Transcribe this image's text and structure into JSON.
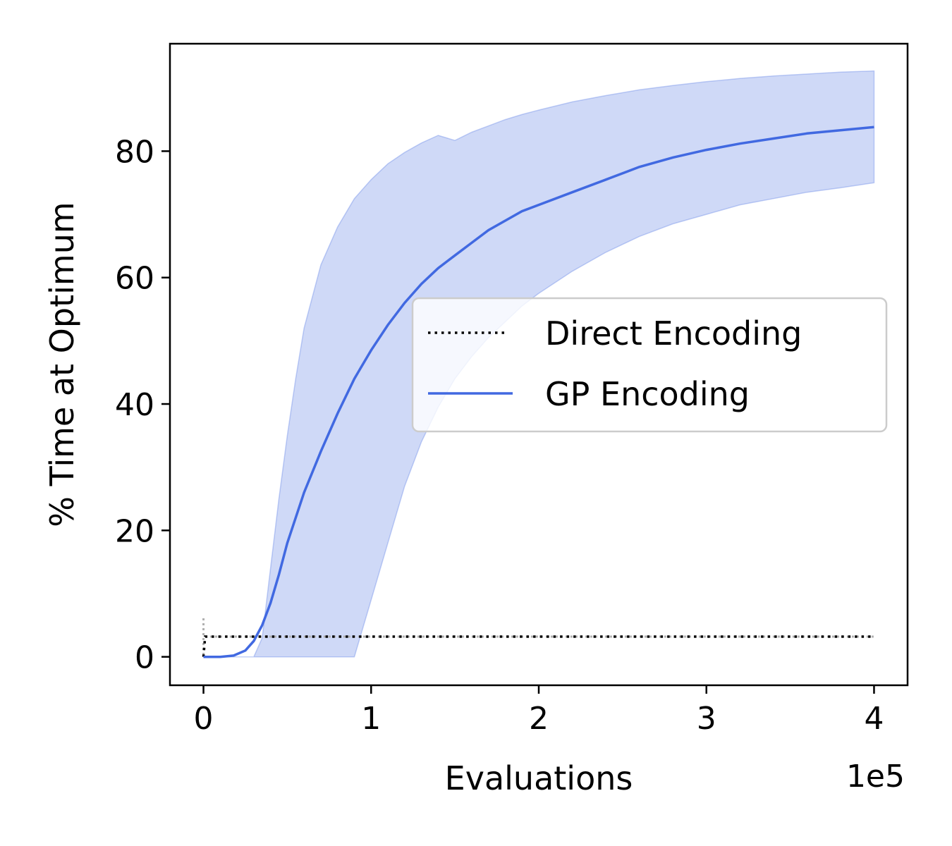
{
  "chart_data": {
    "type": "line",
    "title": "",
    "xlabel": "Evaluations",
    "ylabel": "% Time at Optimum",
    "x_offset_label": "1e5",
    "xlim": [
      -0.2,
      4.2
    ],
    "ylim": [
      -4.5,
      97
    ],
    "x_ticks": [
      0,
      1,
      2,
      3,
      4
    ],
    "x_tick_labels": [
      "0",
      "1",
      "2",
      "3",
      "4"
    ],
    "y_ticks": [
      0,
      20,
      40,
      60,
      80
    ],
    "y_tick_labels": [
      "0",
      "20",
      "40",
      "60",
      "80"
    ],
    "grid": false,
    "legend": {
      "placement": "center-right",
      "entries": [
        {
          "label": "Direct Encoding",
          "style": "dotted",
          "color": "#000000"
        },
        {
          "label": "GP Encoding",
          "style": "solid",
          "color": "#4169e1"
        }
      ]
    },
    "series": [
      {
        "name": "Direct Encoding",
        "color": "#000000",
        "style": "dotted",
        "x": [
          0,
          0.01,
          0.5,
          1,
          2,
          3,
          4
        ],
        "y": [
          0,
          3.2,
          3.2,
          3.2,
          3.2,
          3.2,
          3.2
        ],
        "band_color": "#b0b0b0",
        "band_spike": {
          "x": 0,
          "low": 0.3,
          "high": 6.5
        }
      },
      {
        "name": "GP Encoding",
        "color": "#4169e1",
        "style": "solid",
        "band_color": "#4169e1",
        "x": [
          0,
          0.1,
          0.18,
          0.25,
          0.3,
          0.35,
          0.4,
          0.45,
          0.5,
          0.55,
          0.6,
          0.7,
          0.8,
          0.9,
          1.0,
          1.1,
          1.2,
          1.3,
          1.4,
          1.5,
          1.6,
          1.7,
          1.8,
          1.9,
          2.0,
          2.2,
          2.4,
          2.6,
          2.8,
          3.0,
          3.2,
          3.4,
          3.6,
          3.8,
          4.0
        ],
        "y": [
          0,
          0,
          0.2,
          1,
          2.5,
          5,
          8.5,
          13,
          18,
          22,
          26,
          32.5,
          38.5,
          44,
          48.5,
          52.5,
          56,
          59,
          61.5,
          63.5,
          65.5,
          67.5,
          69,
          70.5,
          71.5,
          73.5,
          75.5,
          77.5,
          79,
          80.2,
          81.2,
          82,
          82.8,
          83.3,
          83.8
        ],
        "lower": [
          0,
          0,
          0,
          0,
          0,
          0,
          0,
          0,
          0,
          0,
          0,
          0,
          0,
          0,
          9,
          18,
          27,
          34,
          39.5,
          44,
          47.5,
          50.5,
          53,
          55.5,
          57.5,
          61,
          64,
          66.5,
          68.5,
          70,
          71.5,
          72.5,
          73.5,
          74.2,
          75
        ],
        "upper": [
          0,
          0,
          0,
          0,
          0,
          3,
          14,
          25,
          35,
          44,
          52,
          62,
          68,
          72.5,
          75.5,
          78,
          79.8,
          81.3,
          82.5,
          81.7,
          83,
          84,
          85,
          85.8,
          86.5,
          87.8,
          88.8,
          89.7,
          90.4,
          91,
          91.5,
          91.9,
          92.2,
          92.5,
          92.7
        ]
      }
    ]
  }
}
